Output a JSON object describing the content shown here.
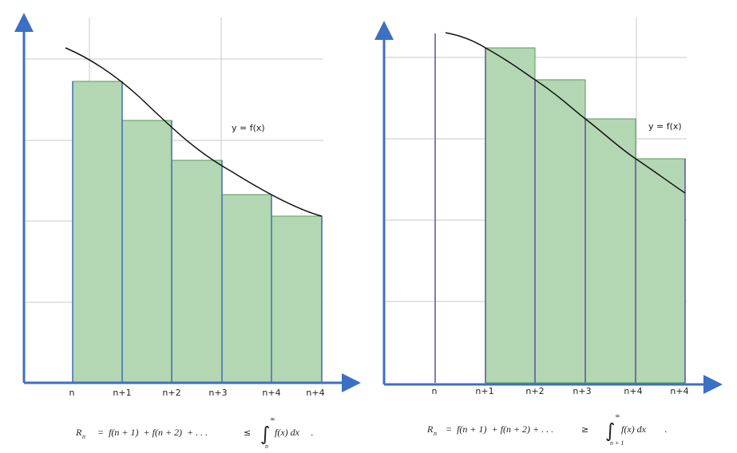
{
  "left_panel": {
    "x_labels": [
      "n",
      "n+1",
      "n+2",
      "n+3",
      "n+4",
      "n+4"
    ],
    "curve_label": "y = f(x)",
    "formula": {
      "lhs": "R",
      "lhs_sub": "n",
      "sum": "=  f(n + 1)  + f(n + 2)  + . . .",
      "relation": "≤",
      "integral": "∫",
      "upper": "∞",
      "lower": "n",
      "integrand": "f(x) dx",
      "end": "."
    }
  },
  "right_panel": {
    "x_labels": [
      "n",
      "n+1",
      "n+2",
      "n+3",
      "n+4",
      "n+4"
    ],
    "curve_label": "y = f(x)",
    "formula": {
      "lhs": "R",
      "lhs_sub": "n",
      "sum": "=  f(n + 1)  + f(n + 2) + . . .",
      "relation": "≥",
      "integral": "∫",
      "upper": "∞",
      "lower": "n + 1",
      "integrand": "f(x) dx",
      "end": "."
    }
  }
}
